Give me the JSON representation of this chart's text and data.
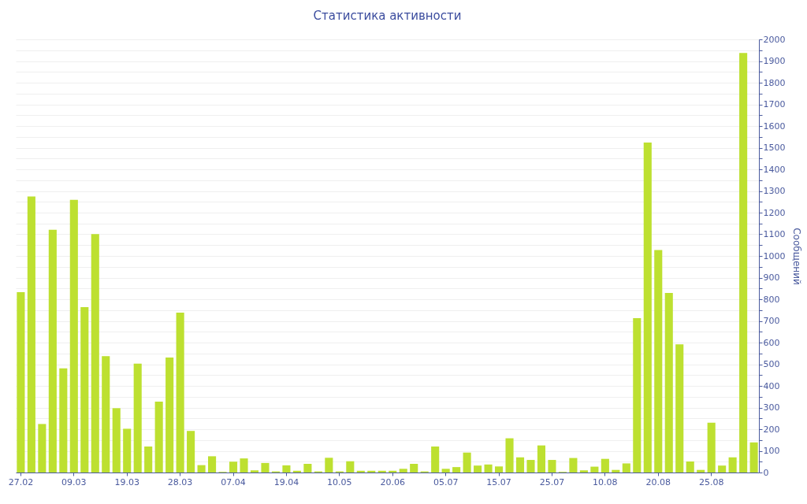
{
  "chart_data": {
    "type": "bar",
    "title": "Статистика активности",
    "ylabel": "Сообщений",
    "categories": [
      "27.02",
      null,
      null,
      null,
      null,
      "09.03",
      null,
      null,
      null,
      null,
      "19.03",
      null,
      null,
      null,
      null,
      "28.03",
      null,
      null,
      null,
      null,
      "07.04",
      null,
      null,
      null,
      null,
      "19.04",
      null,
      null,
      null,
      null,
      "10.05",
      null,
      null,
      null,
      null,
      "20.06",
      null,
      null,
      null,
      null,
      "05.07",
      null,
      null,
      null,
      null,
      "15.07",
      null,
      null,
      null,
      null,
      "25.07",
      null,
      null,
      null,
      null,
      "10.08",
      null,
      null,
      null,
      null,
      "20.08",
      null,
      null,
      null,
      null,
      "25.08",
      null,
      null,
      null,
      null
    ],
    "values": [
      833,
      1275,
      224,
      1121,
      481,
      1259,
      764,
      1101,
      537,
      297,
      202,
      503,
      120,
      327,
      531,
      738,
      192,
      34,
      75,
      3,
      50,
      65,
      10,
      44,
      5,
      33,
      8,
      40,
      5,
      68,
      5,
      52,
      8,
      8,
      8,
      8,
      17,
      40,
      5,
      120,
      17,
      25,
      92,
      32,
      37,
      28,
      158,
      70,
      58,
      125,
      58,
      3,
      67,
      10,
      27,
      63,
      12,
      42,
      713,
      1524,
      1027,
      829,
      592,
      51,
      12,
      230,
      32,
      70,
      1937,
      139
    ],
    "color": "#bde030",
    "ylim": [
      0,
      2000
    ],
    "yticks": [
      0,
      {
        "value": 50,
        "label": null
      },
      100,
      {
        "value": 150,
        "label": null
      },
      200,
      {
        "value": 250,
        "label": null
      },
      300,
      {
        "value": 350,
        "label": null
      },
      400,
      {
        "value": 450,
        "label": null
      },
      500,
      {
        "value": 550,
        "label": null
      },
      600,
      {
        "value": 650,
        "label": null
      },
      700,
      {
        "value": 750,
        "label": null
      },
      800,
      {
        "value": 850,
        "label": null
      },
      900,
      {
        "value": 950,
        "label": null
      },
      1000,
      {
        "value": 1050,
        "label": null
      },
      1100,
      {
        "value": 1150,
        "label": null
      },
      1200,
      {
        "value": 1250,
        "label": null
      },
      1300,
      {
        "value": 1350,
        "label": null
      },
      1400,
      {
        "value": 1450,
        "label": null
      },
      1500,
      {
        "value": 1550,
        "label": null
      },
      1600,
      {
        "value": 1650,
        "label": null
      },
      1700,
      {
        "value": 1750,
        "label": null
      },
      1800,
      {
        "value": 1850,
        "label": null
      },
      1900,
      {
        "value": 1950,
        "label": null
      },
      2000
    ],
    "grid": "y"
  }
}
